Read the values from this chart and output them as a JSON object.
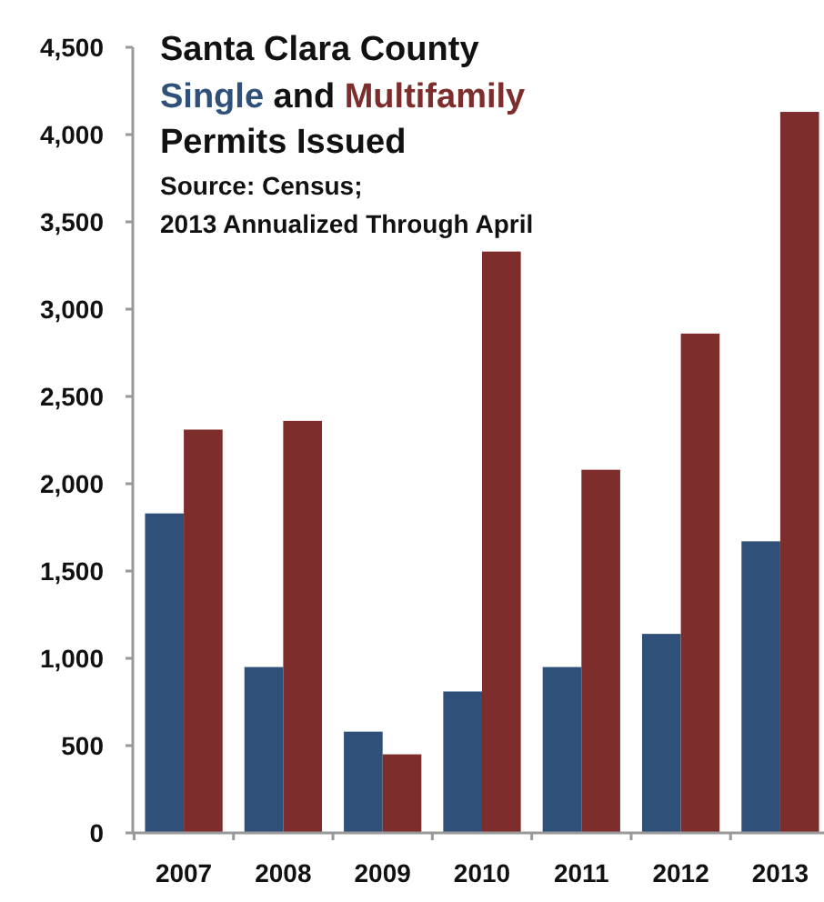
{
  "chart_data": {
    "type": "bar",
    "title": "Santa Clara County",
    "subtitle": "Permits Issued",
    "legend_title": "and",
    "legend": "top left",
    "annotations": [
      "Source: Census;",
      "2013 Annualized Through April"
    ],
    "categories": [
      "2007",
      "2008",
      "2009",
      "2010",
      "2011",
      "2012",
      "2013"
    ],
    "series": [
      {
        "name": "Single",
        "color": "#2f5179",
        "values": [
          1830,
          950,
          580,
          810,
          950,
          1140,
          1670
        ]
      },
      {
        "name": "Multifamily",
        "color": "#7d2d2b",
        "values": [
          2310,
          2360,
          450,
          3330,
          2080,
          2860,
          4130
        ]
      }
    ],
    "ylim": [
      0,
      4500
    ],
    "yticks": [
      {
        "value": 0,
        "label": "0"
      },
      {
        "value": 500,
        "label": "500"
      },
      {
        "value": 1000,
        "label": "1,000"
      },
      {
        "value": 1500,
        "label": "1,500"
      },
      {
        "value": 2000,
        "label": "2,000"
      },
      {
        "value": 2500,
        "label": "2,500"
      },
      {
        "value": 3000,
        "label": "3,000"
      },
      {
        "value": 3500,
        "label": "3,500"
      },
      {
        "value": 4000,
        "label": "4,000"
      },
      {
        "value": 4500,
        "label": "4,500"
      }
    ],
    "grid": false
  }
}
